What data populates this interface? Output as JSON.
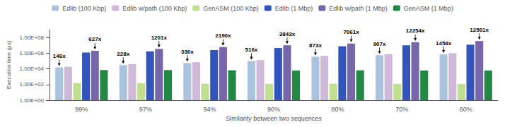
{
  "chart_data": {
    "type": "bar",
    "categories": [
      "99%",
      "97%",
      "94%",
      "90%",
      "80%",
      "70%",
      "60%"
    ],
    "series": [
      {
        "name": "Edlib (100 Kbp)",
        "color": "#aac4e0",
        "values": [
          15000,
          30000,
          55000,
          100000,
          350000,
          550000,
          700000
        ]
      },
      {
        "name": "Edlib w/path (100 Kbp)",
        "color": "#d0b8d8",
        "values": [
          18000,
          40000,
          70000,
          130000,
          450000,
          750000,
          1000000
        ]
      },
      {
        "name": "GenASM (100 Kbp)",
        "color": "#c0e090",
        "values": [
          150,
          150,
          130,
          120,
          130,
          120,
          120
        ]
      },
      {
        "name": "Edlib (1 Mbp)",
        "color": "#3355bb",
        "values": [
          1200000,
          1700000,
          2500000,
          4500000,
          7500000,
          10000000,
          12000000
        ]
      },
      {
        "name": "Edlib w/path (1 Mbp)",
        "color": "#7766aa",
        "values": [
          2000000,
          3500000,
          6000000,
          10000000,
          17000000,
          25000000,
          35000000
        ]
      },
      {
        "name": "GenASM (1 Mbp)",
        "color": "#228844",
        "values": [
          7000,
          7000,
          6500,
          6000,
          6500,
          6000,
          6000
        ]
      }
    ],
    "xlabel": "Similarity between two sequences",
    "ylabel": "Execution time (μs)",
    "log": "y",
    "ylim": [
      1,
      1000000000
    ],
    "yticks": [
      {
        "value": 1,
        "label": "1.00E+00"
      },
      {
        "value": 100,
        "label": "1.00E+02"
      },
      {
        "value": 10000,
        "label": "1.00E+04"
      },
      {
        "value": 1000000,
        "label": "1.00E+06"
      },
      {
        "value": 100000000,
        "label": "1.00E+08"
      }
    ],
    "grid": false,
    "legend": "top",
    "annotations": [
      {
        "series": "Edlib (100 Kbp)",
        "labels": [
          "146x",
          "228x",
          "336x",
          "516x",
          "873x",
          "907x",
          "1458x"
        ]
      },
      {
        "series": "Edlib w/path (1 Mbp)",
        "labels": [
          "627x",
          "1201x",
          "2190x",
          "3843x",
          "7061x",
          "12254x",
          "12501x"
        ]
      }
    ]
  }
}
